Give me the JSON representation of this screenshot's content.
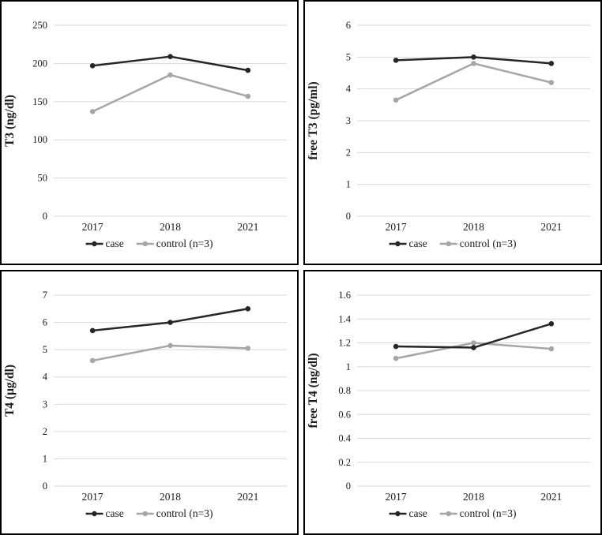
{
  "figure": {
    "background": "#ffffff",
    "panel_border_color": "#000000",
    "gridline_color": "#d9d9d9",
    "text_color": "#1a1a1a"
  },
  "chart_data": [
    {
      "type": "line",
      "title": "",
      "xlabel": "",
      "ylabel": "T3 (ng/dl)",
      "categories": [
        "2017",
        "2018",
        "2021"
      ],
      "ylim": [
        0,
        250
      ],
      "yticks": [
        0,
        50,
        100,
        150,
        200,
        250
      ],
      "ytick_labels": [
        "0",
        "50",
        "100",
        "150",
        "200",
        "250"
      ],
      "grid": true,
      "legend_position": "bottom",
      "series": [
        {
          "name": "case",
          "color": "#262626",
          "values": [
            197,
            209,
            191
          ]
        },
        {
          "name": "control (n=3)",
          "color": "#a6a6a6",
          "values": [
            137,
            185,
            157
          ]
        }
      ]
    },
    {
      "type": "line",
      "title": "",
      "xlabel": "",
      "ylabel": "free T3 (pg/ml)",
      "categories": [
        "2017",
        "2018",
        "2021"
      ],
      "ylim": [
        0,
        6
      ],
      "yticks": [
        0,
        1,
        2,
        3,
        4,
        5,
        6
      ],
      "ytick_labels": [
        "0",
        "1",
        "2",
        "3",
        "4",
        "5",
        "6"
      ],
      "grid": true,
      "legend_position": "bottom",
      "series": [
        {
          "name": "case",
          "color": "#262626",
          "values": [
            4.9,
            5.0,
            4.8
          ]
        },
        {
          "name": "control (n=3)",
          "color": "#a6a6a6",
          "values": [
            3.65,
            4.8,
            4.2
          ]
        }
      ]
    },
    {
      "type": "line",
      "title": "",
      "xlabel": "",
      "ylabel": "T4 (μg/dl)",
      "categories": [
        "2017",
        "2018",
        "2021"
      ],
      "ylim": [
        0,
        7
      ],
      "yticks": [
        0,
        1,
        2,
        3,
        4,
        5,
        6,
        7
      ],
      "ytick_labels": [
        "0",
        "1",
        "2",
        "3",
        "4",
        "5",
        "6",
        "7"
      ],
      "grid": true,
      "legend_position": "bottom",
      "series": [
        {
          "name": "case",
          "color": "#262626",
          "values": [
            5.7,
            6.0,
            6.5
          ]
        },
        {
          "name": "control (n=3)",
          "color": "#a6a6a6",
          "values": [
            4.6,
            5.15,
            5.05
          ]
        }
      ]
    },
    {
      "type": "line",
      "title": "",
      "xlabel": "",
      "ylabel": "free T4 (ng/dl)",
      "categories": [
        "2017",
        "2018",
        "2021"
      ],
      "ylim": [
        0,
        1.6
      ],
      "yticks": [
        0,
        0.2,
        0.4,
        0.6,
        0.8,
        1,
        1.2,
        1.4,
        1.6
      ],
      "ytick_labels": [
        "0",
        "0.2",
        "0.4",
        "0.6",
        "0.8",
        "1",
        "1.2",
        "1.4",
        "1.6"
      ],
      "grid": true,
      "legend_position": "bottom",
      "series": [
        {
          "name": "case",
          "color": "#262626",
          "values": [
            1.17,
            1.16,
            1.36
          ]
        },
        {
          "name": "control (n=3)",
          "color": "#a6a6a6",
          "values": [
            1.07,
            1.2,
            1.15
          ]
        }
      ]
    }
  ]
}
